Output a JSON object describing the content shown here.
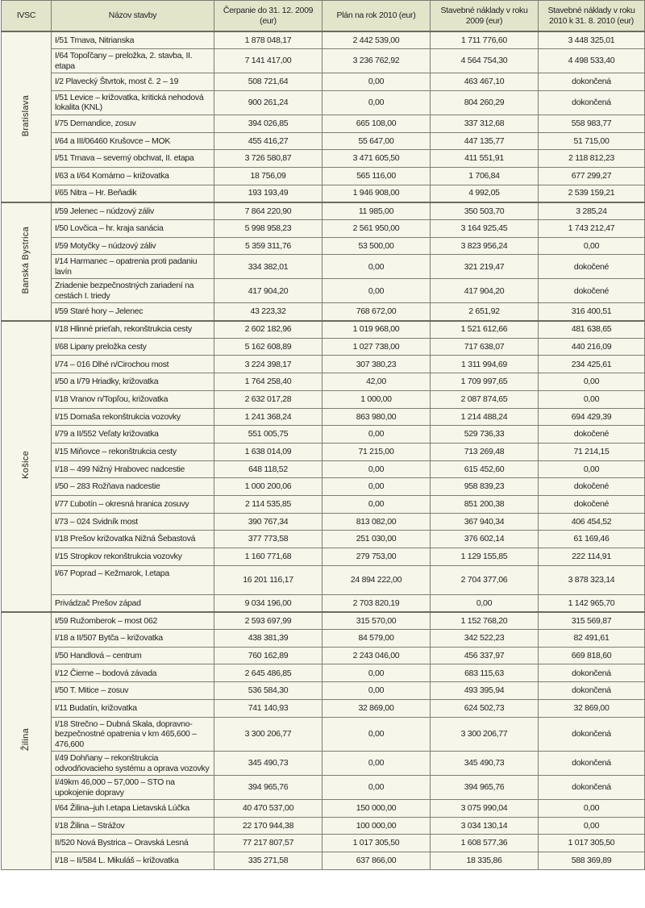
{
  "header": {
    "ivsc": "IVSC",
    "name": "Názov stavby",
    "c1": "Čerpanie do 31. 12. 2009 (eur)",
    "c2": "Plán na rok 2010 (eur)",
    "c3": "Stavebné náklady v roku 2009 (eur)",
    "c4": "Stavebné náklady v roku 2010 k 31. 8. 2010 (eur)"
  },
  "regions": [
    {
      "label": "Bratislava",
      "rows": [
        {
          "name": "I/51 Trnava, Nitrianska",
          "c1": "1 878 048,17",
          "c2": "2 442 539,00",
          "c3": "1 711 776,60",
          "c4": "3 448 325,01"
        },
        {
          "name": "I/64 Topoľčany – preložka, 2. stavba, II. etapa",
          "c1": "7 141 417,00",
          "c2": "3 236 762,92",
          "c3": "4 564 754,30",
          "c4": "4 498 533,40"
        },
        {
          "name": "I/2 Plavecký Štvrtok, most č. 2 – 19",
          "c1": "508 721,64",
          "c2": "0,00",
          "c3": "463 467,10",
          "c4": "dokončená"
        },
        {
          "name": "I/51 Levice – križovatka, kritická nehodová lokalita (KNL)",
          "c1": "900 261,24",
          "c2": "0,00",
          "c3": "804 260,29",
          "c4": "dokončená"
        },
        {
          "name": "I/75 Demandice, zosuv",
          "c1": "394 026,85",
          "c2": "665 108,00",
          "c3": "337 312,68",
          "c4": "558 983,77"
        },
        {
          "name": "I/64 a III/06460 Krušovce – MOK",
          "c1": "455 416,27",
          "c2": "55 647,00",
          "c3": "447 135,77",
          "c4": "51 715,00"
        },
        {
          "name": "I/51 Trnava – severný obchvat, II. etapa",
          "c1": "3 726 580,87",
          "c2": "3 471 605,50",
          "c3": "411 551,91",
          "c4": "2 118 812,23"
        },
        {
          "name": "I/63 a I/64 Komárno – križovatka",
          "c1": "18 756,09",
          "c2": "565 116,00",
          "c3": "1 706,84",
          "c4": "677 299,27"
        },
        {
          "name": "I/65 Nitra – Hr. Beňadik",
          "c1": "193 193,49",
          "c2": "1 946 908,00",
          "c3": "4 992,05",
          "c4": "2 539 159,21"
        }
      ]
    },
    {
      "label": "Banská Bystrica",
      "rows": [
        {
          "name": "I/59 Jelenec – núdzový záliv",
          "c1": "7 864 220,90",
          "c2": "11 985,00",
          "c3": "350 503,70",
          "c4": "3 285,24"
        },
        {
          "name": "I/50 Lovčica – hr. kraja sanácia",
          "c1": "5 998 958,23",
          "c2": "2 561 950,00",
          "c3": "3 164 925,45",
          "c4": "1 743 212,47"
        },
        {
          "name": "I/59 Motyčky – núdzový záliv",
          "c1": "5 359 311,76",
          "c2": "53 500,00",
          "c3": "3 823 956,24",
          "c4": "0,00"
        },
        {
          "name": "I/14 Harmanec – opatrenia proti padaniu lavín",
          "c1": "334 382,01",
          "c2": "0,00",
          "c3": "321 219,47",
          "c4": "dokočené"
        },
        {
          "name": "Zriadenie bezpečnostných zariadení na cestách I. triedy",
          "c1": "417 904,20",
          "c2": "0,00",
          "c3": "417 904,20",
          "c4": "dokočené"
        },
        {
          "name": "I/59 Staré hory – Jelenec",
          "c1": "43 223,32",
          "c2": "768 672,00",
          "c3": "2 651,92",
          "c4": "316 400,51"
        }
      ]
    },
    {
      "label": "Košice",
      "rows": [
        {
          "name": "I/18 Hlinné prieťah, rekonštrukcia cesty",
          "c1": "2 602 182,96",
          "c2": "1 019 968,00",
          "c3": "1 521 612,66",
          "c4": "481 638,65"
        },
        {
          "name": "I/68 Lipany preložka cesty",
          "c1": "5 162 608,89",
          "c2": "1 027 738,00",
          "c3": "717 638,07",
          "c4": "440 216,09"
        },
        {
          "name": "I/74 – 016 Dlhé n/Cirochou most",
          "c1": "3 224 398,17",
          "c2": "307 380,23",
          "c3": "1 311 994,69",
          "c4": "234 425,61"
        },
        {
          "name": "I/50 a I/79 Hriadky, križovatka",
          "c1": "1 764 258,40",
          "c2": "42,00",
          "c3": "1 709 997,65",
          "c4": "0,00"
        },
        {
          "name": "I/18 Vranov n/Topľou, križovatka",
          "c1": "2 632 017,28",
          "c2": "1 000,00",
          "c3": "2 087 874,65",
          "c4": "0,00"
        },
        {
          "name": "I/15 Domaša rekonštrukcia vozovky",
          "c1": "1 241 368,24",
          "c2": "863 980,00",
          "c3": "1 214 488,24",
          "c4": "694 429,39"
        },
        {
          "name": "I/79 a II/552 Veľaty križovatka",
          "c1": "551 005,75",
          "c2": "0,00",
          "c3": "529 736,33",
          "c4": "dokočené"
        },
        {
          "name": "I/15 Miňovce – rekonštrukcia cesty",
          "c1": "1 638 014,09",
          "c2": "71 215,00",
          "c3": "713 269,48",
          "c4": "71 214,15"
        },
        {
          "name": "I/18 – 499 Nižný Hrabovec nadcestie",
          "c1": "648 118,52",
          "c2": "0,00",
          "c3": "615 452,60",
          "c4": "0,00"
        },
        {
          "name": "I/50 – 283 Rožňava nadcestie",
          "c1": "1 000 200,06",
          "c2": "0,00",
          "c3": "958 839,23",
          "c4": "dokočené"
        },
        {
          "name": "I/77 Ľubotín – okresná hranica zosuvy",
          "c1": "2 114 535,85",
          "c2": "0,00",
          "c3": "851 200,38",
          "c4": "dokočené"
        },
        {
          "name": "I/73 – 024 Svidník most",
          "c1": "390 767,34",
          "c2": "813 082,00",
          "c3": "367 940,34",
          "c4": "406 454,52"
        },
        {
          "name": "I/18 Prešov križovatka Nižná Šebastová",
          "c1": "377 773,58",
          "c2": "251 030,00",
          "c3": "376 602,14",
          "c4": "61 169,46"
        },
        {
          "name": "I/15 Stropkov rekonštrukcia vozovky",
          "c1": "1 160 771,68",
          "c2": "279 753,00",
          "c3": "1 129 155,85",
          "c4": "222 114,91"
        },
        {
          "name": "I/67 Poprad – Kežmarok, I.etapa",
          "c1": "16 201 116,17",
          "c2": "24 894 222,00",
          "c3": "2 704 377,06",
          "c4": "3 878 323,14"
        },
        {
          "name": "Privádzač Prešov západ",
          "c1": "9 034 196,00",
          "c2": "2 703 820,19",
          "c3": "0,00",
          "c4": "1 142 965,70"
        }
      ]
    },
    {
      "label": "Žilina",
      "rows": [
        {
          "name": "I/59 Ružomberok – most 062",
          "c1": "2 593 697,99",
          "c2": "315 570,00",
          "c3": "1 152 768,20",
          "c4": "315 569,87"
        },
        {
          "name": "I/18 a II/507 Bytča – križovatka",
          "c1": "438 381,39",
          "c2": "84 579,00",
          "c3": "342 522,23",
          "c4": "82 491,61"
        },
        {
          "name": "I/50 Handlová – centrum",
          "c1": "760 162,89",
          "c2": "2 243 046,00",
          "c3": "456 337,97",
          "c4": "669 818,60"
        },
        {
          "name": "I/12 Čierne – bodová závada",
          "c1": "2 645 486,85",
          "c2": "0,00",
          "c3": "683 115,63",
          "c4": "dokončená"
        },
        {
          "name": "I/50 T. Mitice – zosuv",
          "c1": "536 584,30",
          "c2": "0,00",
          "c3": "493 395,94",
          "c4": "dokončená"
        },
        {
          "name": "I/11 Budatín, križovatka",
          "c1": "741 140,93",
          "c2": "32 869,00",
          "c3": "624 502,73",
          "c4": "32 869,00"
        },
        {
          "name": "I/18 Strečno – Dubná Skala, dopravno-bezpečnostné opatrenia v km 465,600 – 476,600",
          "c1": "3 300 206,77",
          "c2": "0,00",
          "c3": "3 300 206,77",
          "c4": "dokončená"
        },
        {
          "name": "I/49 Dohňany – rekonštrukcia odvodňovacieho systému a oprava vozovky",
          "c1": "345 490,73",
          "c2": "0,00",
          "c3": "345 490,73",
          "c4": "dokončená"
        },
        {
          "name": "I/49km 46,000 – 57,000 – STO na upokojenie dopravy",
          "c1": "394 965,76",
          "c2": "0,00",
          "c3": "394 965,76",
          "c4": "dokončená"
        },
        {
          "name": "I/64 Žilina–juh I.etapa Lietavská Lúčka",
          "c1": "40 470 537,00",
          "c2": "150 000,00",
          "c3": "3 075 990,04",
          "c4": "0,00"
        },
        {
          "name": "I/18 Žilina – Strážov",
          "c1": "22 170 944,38",
          "c2": "100 000,00",
          "c3": "3 034 130,14",
          "c4": "0,00"
        },
        {
          "name": "II/520 Nová Bystrica – Oravská Lesná",
          "c1": "77 217 807,57",
          "c2": "1 017 305,50",
          "c3": "1 608 577,36",
          "c4": "1 017 305,50"
        },
        {
          "name": "I/18 – II/584 L. Mikuláš – križovatka",
          "c1": "335 271,58",
          "c2": "637 866,00",
          "c3": "18 335,86",
          "c4": "588 369,89"
        }
      ]
    }
  ]
}
